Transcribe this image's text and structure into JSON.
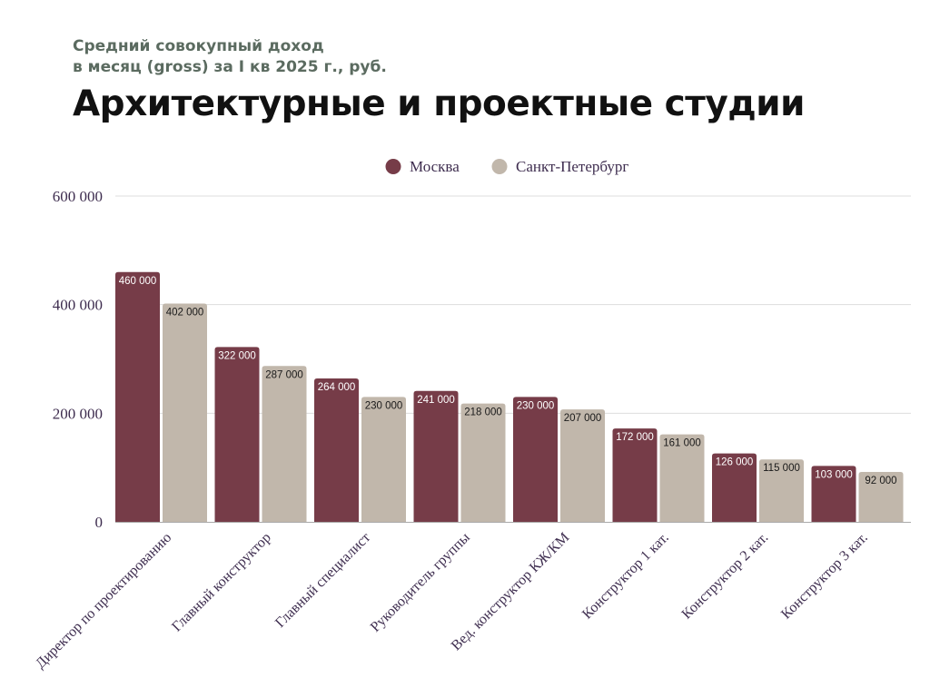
{
  "header": {
    "subtitle_line1": "Средний совокупный доход",
    "subtitle_line2": "в месяц (gross) за I кв 2025 г., руб.",
    "title": "Архитектурные и проектные студии"
  },
  "colors": {
    "moscow": "#763c48",
    "spb": "#c1b7ab",
    "grid": "#dddddd",
    "axis": "#a9a9a9"
  },
  "chart_data": {
    "type": "bar",
    "title": "Архитектурные и проектные студии",
    "ylim": [
      0,
      600000
    ],
    "yticks": [
      0,
      200000,
      400000,
      600000
    ],
    "ytick_labels": [
      "0",
      "200 000",
      "400 000",
      "600 000"
    ],
    "grid": true,
    "legend_position": "top-center",
    "categories": [
      "Директор по проектированию",
      "Главный конструктор",
      "Главный специалист",
      "Руководитель группы",
      "Вед. конструктор КЖ/КМ",
      "Конструктор 1 кат.",
      "Конструктор 2 кат.",
      "Конструктор 3 кат."
    ],
    "series": [
      {
        "name": "Москва",
        "color": "#763c48",
        "values": [
          460000,
          322000,
          264000,
          241000,
          230000,
          172000,
          126000,
          103000
        ],
        "labels": [
          "460 000",
          "322 000",
          "264 000",
          "241 000",
          "230 000",
          "172 000",
          "126 000",
          "103 000"
        ]
      },
      {
        "name": "Санкт-Петербург",
        "color": "#c1b7ab",
        "values": [
          402000,
          287000,
          230000,
          218000,
          207000,
          161000,
          115000,
          92000
        ],
        "labels": [
          "402 000",
          "287 000",
          "230 000",
          "218 000",
          "207 000",
          "161 000",
          "115 000",
          "92 000"
        ]
      }
    ]
  }
}
